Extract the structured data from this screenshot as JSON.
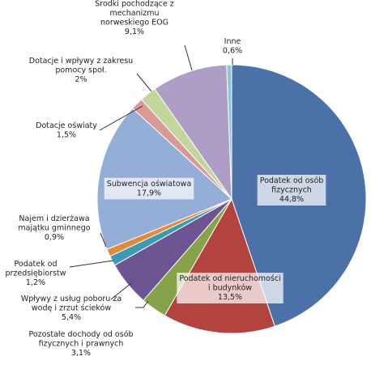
{
  "chart_data": {
    "type": "pie",
    "title": "",
    "slices": [
      {
        "name": "Podatek od osób fizycznych",
        "value": 44.8,
        "value_label": "44,8%",
        "color": "#4c71a8"
      },
      {
        "name": "Podatek od nieruchomości i budynków",
        "value": 13.5,
        "value_label": "13,5%",
        "color": "#b3433f"
      },
      {
        "name": "Pozostałe dochody od osób fizycznych i prawnych",
        "value": 3.1,
        "value_label": "3,1%",
        "color": "#86a34a"
      },
      {
        "name": "Wpływy z usług poboru za wodę i zrzut ścieków",
        "value": 5.4,
        "value_label": "5,4%",
        "color": "#6c5592"
      },
      {
        "name": "Podatek od przedsiębiorstw",
        "value": 1.2,
        "value_label": "1,2%",
        "color": "#3d9ab1"
      },
      {
        "name": "Najem i dzierżawa majątku gminnego",
        "value": 0.9,
        "value_label": "0,9%",
        "color": "#e08a3a"
      },
      {
        "name": "Subwencja oświatowa",
        "value": 17.9,
        "value_label": "17,9%",
        "color": "#95aed8"
      },
      {
        "name": "Dotacje oświaty",
        "value": 1.5,
        "value_label": "1,5%",
        "color": "#d99a97"
      },
      {
        "name": "Dotacje i wpływy z zakresu pomocy społ.",
        "value": 2.0,
        "value_label": "2%",
        "color": "#c2d69b"
      },
      {
        "name": "Środki pochodzące z mechanizmu norweskiego EOG",
        "value": 9.1,
        "value_label": "9,1%",
        "color": "#ae9dc5"
      },
      {
        "name": "Inne",
        "value": 0.6,
        "value_label": "0,6%",
        "color": "#8cc7dc"
      }
    ],
    "labels": [
      {
        "lines": [
          "Podatek od osób",
          "fizycznych",
          "44,8%"
        ]
      },
      {
        "lines": [
          "Podatek od nieruchomości",
          "i budynków",
          "13,5%"
        ]
      },
      {
        "lines": [
          "Pozostałe dochody od osób",
          "fizycznych i prawnych",
          "3,1%"
        ]
      },
      {
        "lines": [
          "Wpływy z usług poboru za",
          "wodę i zrzut ścieków",
          "5,4%"
        ]
      },
      {
        "lines": [
          "Podatek od",
          "przedsiębiorstw",
          "1,2%"
        ]
      },
      {
        "lines": [
          "Najem i dzierżawa",
          "majątku gminnego",
          "0,9%"
        ]
      },
      {
        "lines": [
          "Subwencja oświatowa",
          "17,9%"
        ]
      },
      {
        "lines": [
          "Dotacje oświaty",
          "1,5%"
        ]
      },
      {
        "lines": [
          "Dotacje i wpływy z zakresu",
          "pomocy społ.",
          "2%"
        ]
      },
      {
        "lines": [
          "Środki pochodzące z",
          "mechanizmu",
          "norweskiego EOG",
          "9,1%"
        ]
      },
      {
        "lines": [
          "Inne",
          "0,6%"
        ]
      }
    ],
    "legend": "none",
    "start_angle_deg": 90,
    "direction": "clockwise"
  }
}
